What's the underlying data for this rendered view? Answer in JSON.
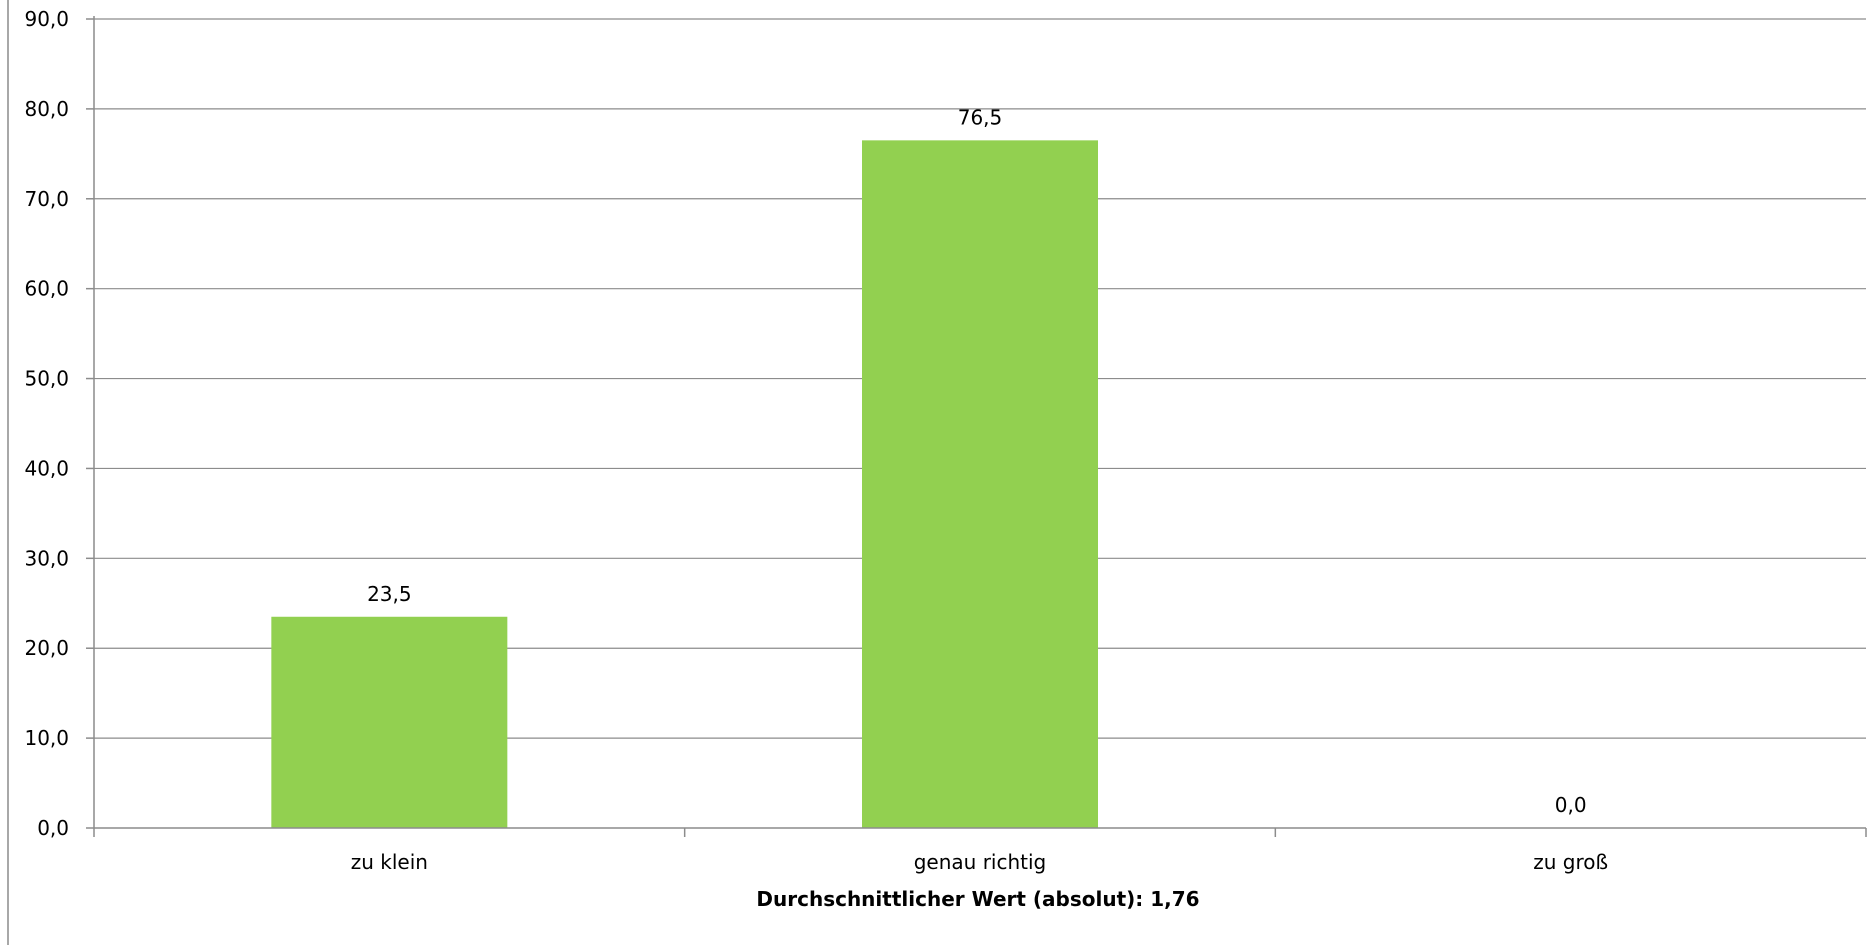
{
  "chart_data": {
    "type": "bar",
    "categories": [
      "zu klein",
      "genau richtig",
      "zu groß"
    ],
    "values": [
      23.5,
      76.5,
      0.0
    ],
    "value_labels": [
      "23,5",
      "76,5",
      "0,0"
    ],
    "title": "",
    "xlabel": "Durchschnittlicher Wert (absolut): 1,76",
    "ylabel": "",
    "ylim": [
      0,
      90
    ],
    "yticks": [
      0,
      10,
      20,
      30,
      40,
      50,
      60,
      70,
      80,
      90
    ],
    "ytick_labels": [
      "0,0",
      "10,0",
      "20,0",
      "30,0",
      "40,0",
      "50,0",
      "60,0",
      "70,0",
      "80,0",
      "90,0"
    ],
    "grid": true,
    "legend": "none",
    "bar_color": "#92d050"
  }
}
